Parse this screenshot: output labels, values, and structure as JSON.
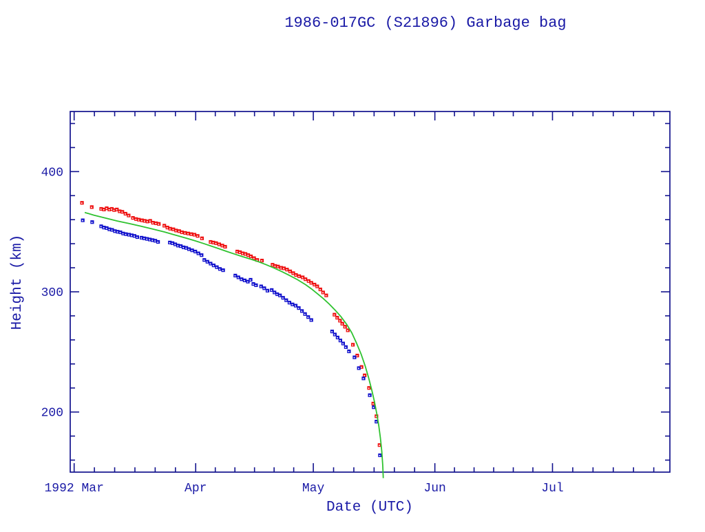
{
  "title": "1986-017GC (S21896) Garbage bag",
  "colors": {
    "text": "#1a1aa6",
    "axis": "#12128e",
    "apogee": "#ee1111",
    "perigee": "#1111cc",
    "model_line": "#2fc22f",
    "background": "#ffffff"
  },
  "chart_data": {
    "type": "scatter",
    "title": "1986-017GC (S21896) Garbage bag",
    "xlabel": "Date (UTC)",
    "ylabel": "Height (km)",
    "x_domain_note": "days since 1992-02-29",
    "x_range_days": [
      0,
      153
    ],
    "ylim": [
      150,
      450
    ],
    "grid": false,
    "x_axis": {
      "major_ticks": [
        {
          "day": 1,
          "label": "1992 Mar"
        },
        {
          "day": 32,
          "label": "Apr"
        },
        {
          "day": 62,
          "label": "May"
        },
        {
          "day": 93,
          "label": "Jun"
        },
        {
          "day": 123,
          "label": "Jul"
        }
      ],
      "month_bounds": [
        [
          1,
          32
        ],
        [
          32,
          62
        ],
        [
          62,
          93
        ],
        [
          93,
          123
        ],
        [
          123,
          154
        ]
      ],
      "minor_divisions_per_month": 6
    },
    "y_axis": {
      "major_ticks": [
        200,
        300,
        400
      ],
      "minor_ticks": [
        160,
        180,
        220,
        240,
        260,
        280,
        320,
        340,
        360,
        380,
        420,
        440
      ]
    },
    "series": [
      {
        "name": "apogee-height",
        "style": "square-markers",
        "color": "#ee1111",
        "points": [
          [
            3.0,
            374
          ],
          [
            5.5,
            370.5
          ],
          [
            7.9,
            369
          ],
          [
            8.6,
            368.5
          ],
          [
            9.3,
            369.5
          ],
          [
            10.0,
            368.5
          ],
          [
            10.6,
            369
          ],
          [
            11.2,
            368
          ],
          [
            11.9,
            368.5
          ],
          [
            12.6,
            367
          ],
          [
            13.3,
            366.5
          ],
          [
            14.1,
            365
          ],
          [
            14.9,
            363.5
          ],
          [
            16.0,
            361.5
          ],
          [
            16.8,
            360.5
          ],
          [
            17.5,
            360
          ],
          [
            18.3,
            359.5
          ],
          [
            19.0,
            359
          ],
          [
            19.7,
            358.5
          ],
          [
            20.4,
            359
          ],
          [
            21.1,
            357.5
          ],
          [
            21.9,
            357
          ],
          [
            22.6,
            356.5
          ],
          [
            24.0,
            355
          ],
          [
            24.8,
            353.5
          ],
          [
            25.5,
            352.5
          ],
          [
            26.3,
            352
          ],
          [
            27.0,
            351
          ],
          [
            27.8,
            350.5
          ],
          [
            28.5,
            349.5
          ],
          [
            29.3,
            349
          ],
          [
            30.1,
            348.5
          ],
          [
            30.9,
            348
          ],
          [
            31.7,
            347.5
          ],
          [
            32.5,
            346.5
          ],
          [
            33.6,
            344.5
          ],
          [
            35.8,
            341.5
          ],
          [
            36.5,
            341
          ],
          [
            37.2,
            340.5
          ],
          [
            38.0,
            339.5
          ],
          [
            38.8,
            338.5
          ],
          [
            39.5,
            337.5
          ],
          [
            42.6,
            333.5
          ],
          [
            43.3,
            333
          ],
          [
            44.0,
            332
          ],
          [
            44.7,
            331.5
          ],
          [
            45.4,
            330.5
          ],
          [
            46.1,
            329.5
          ],
          [
            46.9,
            328
          ],
          [
            47.7,
            326.5
          ],
          [
            48.9,
            326
          ],
          [
            51.6,
            322.5
          ],
          [
            52.3,
            321.5
          ],
          [
            53.0,
            321
          ],
          [
            53.8,
            320
          ],
          [
            54.5,
            319.5
          ],
          [
            55.3,
            318.5
          ],
          [
            56.1,
            317
          ],
          [
            56.9,
            315.5
          ],
          [
            57.6,
            314
          ],
          [
            58.4,
            313
          ],
          [
            59.3,
            312
          ],
          [
            60.0,
            310.5
          ],
          [
            60.8,
            309
          ],
          [
            61.5,
            307.5
          ],
          [
            62.3,
            306
          ],
          [
            63.0,
            304.5
          ],
          [
            63.8,
            302
          ],
          [
            64.5,
            299.5
          ],
          [
            65.3,
            297
          ],
          [
            67.4,
            281
          ],
          [
            68.1,
            278.5
          ],
          [
            68.8,
            276
          ],
          [
            69.4,
            273.5
          ],
          [
            70.1,
            271
          ],
          [
            70.8,
            268
          ],
          [
            72.1,
            256
          ],
          [
            73.2,
            247
          ],
          [
            74.3,
            237.5
          ],
          [
            75.1,
            230.5
          ],
          [
            76.2,
            220
          ],
          [
            77.3,
            207
          ],
          [
            78.1,
            196.5
          ],
          [
            78.9,
            172.5
          ]
        ]
      },
      {
        "name": "perigee-height",
        "style": "square-markers",
        "color": "#1111cc",
        "points": [
          [
            3.2,
            359.5
          ],
          [
            5.6,
            358
          ],
          [
            7.9,
            354.5
          ],
          [
            8.6,
            353.5
          ],
          [
            9.3,
            353
          ],
          [
            10.0,
            352
          ],
          [
            10.7,
            351.5
          ],
          [
            11.4,
            350.5
          ],
          [
            12.1,
            350
          ],
          [
            12.8,
            349.5
          ],
          [
            13.5,
            348.5
          ],
          [
            14.2,
            348
          ],
          [
            15.0,
            347.5
          ],
          [
            15.7,
            347
          ],
          [
            16.4,
            346.5
          ],
          [
            17.1,
            345.5
          ],
          [
            18.2,
            345
          ],
          [
            18.9,
            344.5
          ],
          [
            19.6,
            344
          ],
          [
            20.3,
            343.5
          ],
          [
            21.0,
            343
          ],
          [
            21.7,
            342.5
          ],
          [
            22.4,
            341.5
          ],
          [
            25.4,
            341
          ],
          [
            26.1,
            340.5
          ],
          [
            26.8,
            339.5
          ],
          [
            27.5,
            338.5
          ],
          [
            28.2,
            338
          ],
          [
            28.9,
            337
          ],
          [
            29.6,
            336.5
          ],
          [
            30.3,
            335.5
          ],
          [
            31.1,
            334.5
          ],
          [
            31.9,
            333.5
          ],
          [
            32.7,
            332
          ],
          [
            33.5,
            330.5
          ],
          [
            34.2,
            326.5
          ],
          [
            35.0,
            325
          ],
          [
            35.8,
            323.5
          ],
          [
            36.6,
            322
          ],
          [
            37.4,
            320.5
          ],
          [
            38.2,
            319
          ],
          [
            39.0,
            318
          ],
          [
            42.1,
            313.5
          ],
          [
            42.9,
            312
          ],
          [
            43.7,
            310.5
          ],
          [
            44.5,
            309.5
          ],
          [
            45.3,
            308.5
          ],
          [
            46.0,
            310
          ],
          [
            46.7,
            306.5
          ],
          [
            47.4,
            305.5
          ],
          [
            48.7,
            304.5
          ],
          [
            49.5,
            303
          ],
          [
            50.3,
            301
          ],
          [
            51.4,
            301.5
          ],
          [
            52.1,
            299.5
          ],
          [
            52.8,
            298
          ],
          [
            53.5,
            297
          ],
          [
            54.3,
            295
          ],
          [
            55.1,
            293
          ],
          [
            55.9,
            291
          ],
          [
            56.7,
            289.5
          ],
          [
            57.5,
            288.5
          ],
          [
            58.3,
            286.5
          ],
          [
            59.1,
            284
          ],
          [
            59.9,
            281.5
          ],
          [
            60.7,
            279
          ],
          [
            61.5,
            276.5
          ],
          [
            66.8,
            267
          ],
          [
            67.5,
            264.5
          ],
          [
            68.2,
            262
          ],
          [
            68.9,
            259.5
          ],
          [
            69.6,
            257
          ],
          [
            70.3,
            254
          ],
          [
            71.1,
            250.5
          ],
          [
            72.5,
            245.5
          ],
          [
            73.6,
            236.5
          ],
          [
            74.8,
            228
          ],
          [
            76.4,
            214
          ],
          [
            77.4,
            204
          ],
          [
            78.1,
            192
          ],
          [
            79.0,
            164
          ]
        ]
      },
      {
        "name": "decay-model-curve",
        "style": "line",
        "color": "#2fc22f",
        "points": [
          [
            3.7,
            366
          ],
          [
            6,
            363.8
          ],
          [
            9,
            361.3
          ],
          [
            12,
            358.9
          ],
          [
            15,
            356.8
          ],
          [
            18,
            354.6
          ],
          [
            21,
            352.2
          ],
          [
            24,
            349.8
          ],
          [
            27,
            347
          ],
          [
            30,
            344.2
          ],
          [
            32,
            342.3
          ],
          [
            34,
            340.2
          ],
          [
            36,
            338
          ],
          [
            38,
            335.8
          ],
          [
            40,
            333.5
          ],
          [
            42,
            331.3
          ],
          [
            44,
            329.2
          ],
          [
            46,
            327.2
          ],
          [
            48,
            325
          ],
          [
            50,
            322.5
          ],
          [
            52,
            319.8
          ],
          [
            54,
            316.8
          ],
          [
            56,
            313.5
          ],
          [
            58,
            310
          ],
          [
            60,
            306
          ],
          [
            61.5,
            302.5
          ],
          [
            63,
            298.5
          ],
          [
            64.5,
            294.5
          ],
          [
            66,
            290
          ],
          [
            67.5,
            285
          ],
          [
            69,
            279.5
          ],
          [
            70.5,
            273
          ],
          [
            71.8,
            266
          ],
          [
            73,
            257.5
          ],
          [
            74.2,
            248
          ],
          [
            75.2,
            238.5
          ],
          [
            76.1,
            228.5
          ],
          [
            76.9,
            218.5
          ],
          [
            77.6,
            208.5
          ],
          [
            78.2,
            198.5
          ],
          [
            78.7,
            188.5
          ],
          [
            79.1,
            178.5
          ],
          [
            79.45,
            167.5
          ],
          [
            79.7,
            156
          ],
          [
            79.85,
            145
          ]
        ]
      }
    ]
  }
}
